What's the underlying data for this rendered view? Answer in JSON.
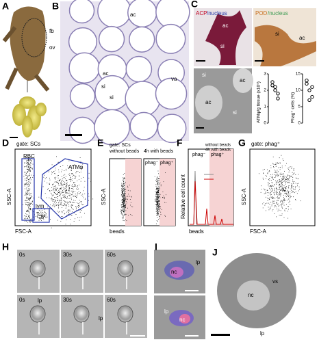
{
  "panel_labels": [
    "A",
    "B",
    "C",
    "D",
    "E",
    "F",
    "G",
    "H",
    "I",
    "J"
  ],
  "a_labels": [
    "fb",
    "ov"
  ],
  "b_labels": [
    "ac",
    "ac",
    "si",
    "si",
    "va"
  ],
  "c_stains": [
    "ACP",
    "/nucleus",
    "POD",
    "/nucleus"
  ],
  "c_labels": [
    "ac",
    "si",
    "ac",
    "si",
    "si",
    "ac",
    "ac",
    "si"
  ],
  "c_charts": [
    {
      "ylabel": "ATMφ/g tissue (x10⁵)",
      "ylim": [
        0,
        3
      ],
      "yticks": [
        0,
        1,
        2,
        3
      ],
      "values": [
        2.3,
        2.0,
        1.8,
        2.5,
        2.2,
        1.5
      ]
    },
    {
      "ylabel": "Phag⁺ cells (%)",
      "ylim": [
        0,
        15
      ],
      "yticks": [
        0,
        5,
        10,
        15
      ],
      "values": [
        12,
        10,
        8,
        13,
        7,
        11
      ]
    }
  ],
  "d": {
    "gate": "gate: SCs",
    "gates": [
      "RBC",
      "ATMφ",
      "lym"
    ],
    "ylabel": "SSC-A",
    "xlabel": "FSC-A"
  },
  "e": {
    "gate": "gate: SCs",
    "conditions": [
      "without beads",
      "4h with beads"
    ],
    "gates": [
      "phag⁻",
      "phag⁺"
    ],
    "ylabel": "SSC-A",
    "xlabel": "beads"
  },
  "f": {
    "legend": [
      "without beads",
      "4h with beads"
    ],
    "gates": [
      "phag⁻",
      "phag⁺"
    ],
    "ylabel": "Relative cell count",
    "xlabel": "beads"
  },
  "g": {
    "gate": "gate: phag⁺",
    "ylabel": "SSC-A",
    "xlabel": "FSC-A"
  },
  "h": {
    "times": [
      "0s",
      "30s",
      "60s",
      "0s",
      "30s",
      "60s"
    ],
    "labels": [
      "lp",
      "lp"
    ]
  },
  "i": {
    "labels": [
      "nc",
      "lp",
      "lp",
      "nc"
    ]
  },
  "j": {
    "labels": [
      "nc",
      "vs",
      "lp"
    ]
  }
}
